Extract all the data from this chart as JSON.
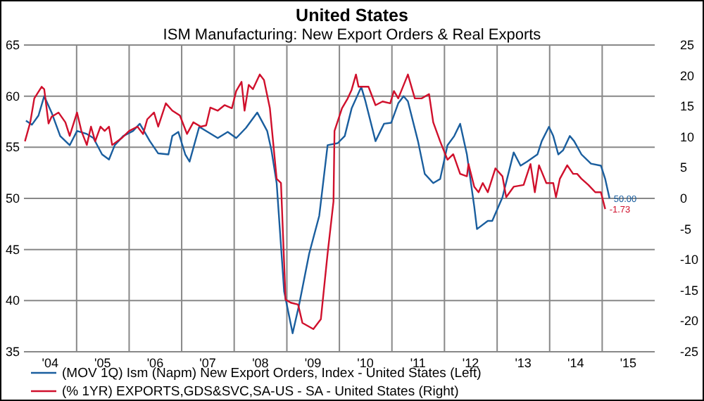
{
  "chart_data": {
    "type": "line",
    "title": "United States",
    "subtitle": "ISM Manufacturing: New Export Orders & Real Exports",
    "xlim": [
      "2004-01-01",
      "2016-01-01"
    ],
    "xticks": [
      {
        "value": "2004-07-01",
        "label": "'04"
      },
      {
        "value": "2005-01-01",
        "label": null
      },
      {
        "value": "2005-07-01",
        "label": "'05"
      },
      {
        "value": "2006-01-01",
        "label": null
      },
      {
        "value": "2006-07-01",
        "label": "'06"
      },
      {
        "value": "2007-01-01",
        "label": null
      },
      {
        "value": "2007-07-01",
        "label": "'07"
      },
      {
        "value": "2008-01-01",
        "label": null
      },
      {
        "value": "2008-07-01",
        "label": "'08"
      },
      {
        "value": "2009-01-01",
        "label": null
      },
      {
        "value": "2009-07-01",
        "label": "'09"
      },
      {
        "value": "2010-01-01",
        "label": null
      },
      {
        "value": "2010-07-01",
        "label": "'10"
      },
      {
        "value": "2011-01-01",
        "label": null
      },
      {
        "value": "2011-07-01",
        "label": "'11"
      },
      {
        "value": "2012-01-01",
        "label": null
      },
      {
        "value": "2012-07-01",
        "label": "'12"
      },
      {
        "value": "2013-01-01",
        "label": null
      },
      {
        "value": "2013-07-01",
        "label": "'13"
      },
      {
        "value": "2014-01-01",
        "label": null
      },
      {
        "value": "2014-07-01",
        "label": "'14"
      },
      {
        "value": "2015-01-01",
        "label": null
      },
      {
        "value": "2015-07-01",
        "label": "'15"
      }
    ],
    "ylim": [
      35,
      65
    ],
    "yticks": [
      35,
      40,
      45,
      50,
      55,
      60,
      65
    ],
    "y2lim": [
      -25,
      25
    ],
    "y2ticks": [
      -25,
      -20,
      -15,
      -10,
      -5,
      0,
      5,
      10,
      15,
      20,
      25
    ],
    "grid": true,
    "legend": "bottom",
    "series": [
      {
        "name": "(MOV 1Q) Ism (Napm) New Export Orders, Index - United States  (Left)",
        "color": "#1a5e9e",
        "axis": "y",
        "x": [
          "2004-01-15",
          "2004-02-25",
          "2004-04-11",
          "2004-05-21",
          "2004-07-11",
          "2004-09-09",
          "2004-11-14",
          "2005-01-04",
          "2005-03-13",
          "2005-04-28",
          "2005-06-27",
          "2005-08-14",
          "2005-09-23",
          "2005-11-21",
          "2006-01-28",
          "2006-03-16",
          "2006-05-25",
          "2006-07-22",
          "2006-10-01",
          "2006-10-28",
          "2006-12-09",
          "2007-01-26",
          "2007-02-25",
          "2007-05-03",
          "2007-09-09",
          "2007-11-17",
          "2008-01-15",
          "2008-03-23",
          "2008-06-09",
          "2008-08-17",
          "2008-09-16",
          "2008-10-22",
          "2008-12-13",
          "2009-02-10",
          "2009-03-27",
          "2009-06-05",
          "2009-08-14",
          "2009-10-11",
          "2009-12-20",
          "2010-02-07",
          "2010-03-27",
          "2010-06-02",
          "2010-07-01",
          "2010-09-09",
          "2010-11-07",
          "2010-12-27",
          "2011-02-14",
          "2011-03-23",
          "2011-04-22",
          "2011-07-01",
          "2011-08-17",
          "2011-10-15",
          "2011-12-02",
          "2012-01-22",
          "2012-03-09",
          "2012-04-19",
          "2012-06-05",
          "2012-07-26",
          "2012-08-14",
          "2012-10-28",
          "2012-11-28",
          "2013-02-07",
          "2013-04-26",
          "2013-06-13",
          "2013-07-28",
          "2013-10-08",
          "2013-11-07",
          "2013-12-27",
          "2014-01-26",
          "2014-03-02",
          "2014-04-04",
          "2014-05-21",
          "2014-06-20",
          "2014-08-10",
          "2014-10-15",
          "2014-12-23",
          "2015-01-22",
          "2015-02-21"
        ],
        "values": [
          57.6,
          57.2,
          58.1,
          60.0,
          58.4,
          56.1,
          55.2,
          56.6,
          56.3,
          55.9,
          54.3,
          53.8,
          55.2,
          56.1,
          56.6,
          57.3,
          55.6,
          54.4,
          54.3,
          56.1,
          56.5,
          54.3,
          53.6,
          57.0,
          55.9,
          56.5,
          55.9,
          56.9,
          58.4,
          56.6,
          54.7,
          51.5,
          40.9,
          36.8,
          39.6,
          44.6,
          48.3,
          55.2,
          55.4,
          56.1,
          58.8,
          60.9,
          59.5,
          55.6,
          57.3,
          57.4,
          59.3,
          60.0,
          59.5,
          55.6,
          52.4,
          51.5,
          51.9,
          55.2,
          56.1,
          57.3,
          54.3,
          49.2,
          47.0,
          47.8,
          47.8,
          50.1,
          54.5,
          53.2,
          53.6,
          54.3,
          55.6,
          57.0,
          56.1,
          54.3,
          54.7,
          56.1,
          55.6,
          54.3,
          53.4,
          53.2,
          51.9,
          50.0
        ],
        "value_labels": [
          null,
          null,
          null,
          null,
          null,
          null,
          null,
          null,
          null,
          null,
          null,
          null,
          null,
          null,
          null,
          null,
          null,
          null,
          null,
          null,
          null,
          null,
          null,
          null,
          null,
          null,
          null,
          null,
          null,
          null,
          null,
          null,
          null,
          null,
          null,
          null,
          null,
          null,
          null,
          null,
          null,
          null,
          null,
          null,
          null,
          null,
          null,
          null,
          null,
          null,
          null,
          null,
          null,
          null,
          null,
          null,
          null,
          null,
          null,
          null,
          null,
          null,
          null,
          null,
          null,
          null,
          null,
          null,
          null,
          null,
          null,
          null,
          null,
          null,
          null,
          null,
          null,
          "50.00"
        ]
      },
      {
        "name": "(% 1YR) EXPORTS,GDS&SVC,SA-US - SA - United States  (Right)",
        "color": "#d0102c",
        "axis": "y2",
        "x": [
          "2004-01-08",
          "2004-02-14",
          "2004-03-13",
          "2004-05-03",
          "2004-05-21",
          "2004-06-20",
          "2004-07-11",
          "2004-08-28",
          "2004-10-15",
          "2004-11-14",
          "2005-01-04",
          "2005-02-03",
          "2005-03-13",
          "2005-04-11",
          "2005-05-10",
          "2005-06-16",
          "2005-07-15",
          "2005-08-14",
          "2005-09-05",
          "2005-11-14",
          "2006-01-01",
          "2006-02-28",
          "2006-04-08",
          "2006-05-07",
          "2006-06-23",
          "2006-07-22",
          "2006-09-13",
          "2006-10-28",
          "2006-12-20",
          "2007-02-07",
          "2007-03-23",
          "2007-05-14",
          "2007-06-20",
          "2007-07-19",
          "2007-09-09",
          "2007-10-26",
          "2007-12-16",
          "2008-01-15",
          "2008-02-21",
          "2008-03-13",
          "2008-04-11",
          "2008-05-10",
          "2008-06-27",
          "2008-07-26",
          "2008-09-05",
          "2008-10-22",
          "2008-11-21",
          "2008-12-23",
          "2009-01-28",
          "2009-03-20",
          "2009-04-19",
          "2009-07-04",
          "2009-08-25",
          "2009-10-11",
          "2009-11-21",
          "2009-11-28",
          "2010-01-19",
          "2010-02-28",
          "2010-03-27",
          "2010-04-26",
          "2010-05-14",
          "2010-07-22",
          "2010-09-09",
          "2010-10-28",
          "2010-12-20",
          "2011-01-15",
          "2011-02-14",
          "2011-04-22",
          "2011-06-09",
          "2011-07-26",
          "2011-09-16",
          "2011-10-15",
          "2011-12-02",
          "2012-01-22",
          "2012-03-02",
          "2012-04-19",
          "2012-06-05",
          "2012-06-16",
          "2012-07-26",
          "2012-08-25",
          "2012-09-23",
          "2012-10-28",
          "2012-12-20",
          "2013-02-07",
          "2013-03-05",
          "2013-04-26",
          "2013-07-04",
          "2013-08-21",
          "2013-09-20",
          "2013-10-19",
          "2013-12-09",
          "2014-01-26",
          "2014-02-14",
          "2014-03-13",
          "2014-05-03",
          "2014-06-13",
          "2014-07-11",
          "2014-08-10",
          "2014-09-27",
          "2014-11-14",
          "2014-12-23",
          "2015-01-22"
        ],
        "values": [
          9.3,
          12.4,
          16.3,
          18.2,
          17.8,
          12.2,
          13.3,
          14.0,
          12.4,
          10.2,
          14.0,
          11.0,
          8.7,
          11.7,
          9.3,
          11.7,
          11.0,
          11.7,
          8.7,
          9.9,
          11.0,
          11.7,
          10.5,
          12.9,
          14.0,
          11.7,
          15.5,
          14.3,
          13.5,
          10.5,
          12.4,
          11.7,
          11.9,
          14.8,
          14.3,
          15.2,
          14.7,
          17.5,
          19.0,
          14.3,
          18.5,
          17.8,
          20.2,
          19.3,
          14.7,
          3.2,
          2.5,
          -16.5,
          -17.0,
          -17.3,
          -20.3,
          -21.3,
          -19.7,
          -9.0,
          -0.5,
          11.0,
          14.7,
          16.3,
          17.7,
          20.2,
          18.2,
          18.2,
          15.2,
          15.8,
          15.5,
          17.5,
          16.3,
          20.2,
          16.3,
          16.3,
          17.0,
          12.4,
          9.3,
          6.3,
          7.2,
          4.0,
          3.6,
          5.6,
          1.9,
          1.0,
          2.5,
          1.0,
          4.9,
          3.6,
          0.2,
          1.9,
          2.2,
          5.6,
          1.0,
          5.4,
          2.5,
          2.5,
          0.2,
          3.2,
          5.4,
          4.0,
          4.0,
          3.2,
          2.2,
          1.0,
          1.0,
          -1.73
        ],
        "value_labels": [
          null,
          null,
          null,
          null,
          null,
          null,
          null,
          null,
          null,
          null,
          null,
          null,
          null,
          null,
          null,
          null,
          null,
          null,
          null,
          null,
          null,
          null,
          null,
          null,
          null,
          null,
          null,
          null,
          null,
          null,
          null,
          null,
          null,
          null,
          null,
          null,
          null,
          null,
          null,
          null,
          null,
          null,
          null,
          null,
          null,
          null,
          null,
          null,
          null,
          null,
          null,
          null,
          null,
          null,
          null,
          null,
          null,
          null,
          null,
          null,
          null,
          null,
          null,
          null,
          null,
          null,
          null,
          null,
          null,
          null,
          null,
          null,
          null,
          null,
          null,
          null,
          null,
          null,
          null,
          null,
          null,
          null,
          null,
          null,
          null,
          null,
          null,
          null,
          null,
          null,
          null,
          null,
          null,
          null,
          null,
          null,
          null,
          null,
          null,
          null,
          null,
          "-1.73"
        ]
      }
    ]
  }
}
